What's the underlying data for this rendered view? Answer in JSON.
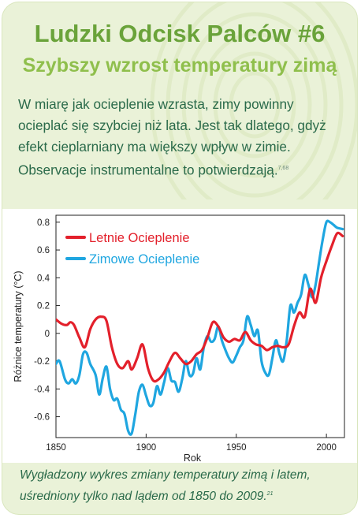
{
  "card": {
    "title": "Ludzki Odcisk Palców #6",
    "subtitle": "Szybszy wzrost temperatury zimą",
    "body": "W miarę jak ocieplenie wzrasta, zimy powinny ocieplać się szybciej niż lata. Jest tak dlatego, gdyż efekt cieplarniany ma większy wpływ w zimie. Observacje instrumentalne to potwierdzają.",
    "body_ref": "7,68",
    "caption": "Wygładzony wykres zmiany temperatury zimą i latem, uśredniony tylko nad lądem od 1850 do 2009.",
    "caption_ref": "21"
  },
  "colors": {
    "accent": "#6aa33a",
    "summer": "#e3202b",
    "winter": "#1fa6e0"
  },
  "chart_data": {
    "type": "line",
    "xlabel": "Rok",
    "ylabel": "Różnice temperatury (°C)",
    "xlim": [
      1850,
      2010
    ],
    "ylim": [
      -0.75,
      0.85
    ],
    "xticks": [
      1850,
      1900,
      1950,
      2000
    ],
    "yticks": [
      0.8,
      0.6,
      0.4,
      0.2,
      0,
      -0.2,
      -0.4,
      -0.6
    ],
    "ytick_labels": [
      "0.8",
      "0.6",
      "0.4",
      "0.2",
      "0",
      "-0.2",
      "-0.4",
      "-0.6"
    ],
    "legend_position": "top-left",
    "grid": false,
    "series": [
      {
        "name": "Letnie Ocieplenie",
        "x": [
          1850,
          1853,
          1856,
          1858,
          1860,
          1863,
          1866,
          1869,
          1872,
          1875,
          1878,
          1881,
          1884,
          1887,
          1890,
          1892,
          1895,
          1898,
          1901,
          1904,
          1907,
          1910,
          1913,
          1916,
          1919,
          1922,
          1925,
          1928,
          1931,
          1934,
          1937,
          1940,
          1943,
          1946,
          1949,
          1952,
          1955,
          1958,
          1961,
          1964,
          1967,
          1970,
          1973,
          1976,
          1979,
          1982,
          1985,
          1988,
          1991,
          1994,
          1997,
          2000,
          2003,
          2006,
          2009
        ],
        "y": [
          0.1,
          0.07,
          0.06,
          0.08,
          0.06,
          -0.03,
          -0.1,
          0.03,
          0.1,
          0.12,
          0.09,
          -0.1,
          -0.22,
          -0.25,
          -0.2,
          -0.26,
          -0.18,
          -0.08,
          -0.25,
          -0.34,
          -0.33,
          -0.28,
          -0.2,
          -0.14,
          -0.18,
          -0.22,
          -0.2,
          -0.15,
          -0.12,
          -0.03,
          0.08,
          0.05,
          -0.03,
          -0.06,
          -0.04,
          -0.05,
          0.01,
          -0.05,
          -0.08,
          -0.09,
          -0.12,
          -0.1,
          -0.09,
          -0.1,
          -0.08,
          0.05,
          0.15,
          0.12,
          0.32,
          0.22,
          0.4,
          0.52,
          0.63,
          0.72,
          0.7
        ]
      },
      {
        "name": "Zimowe Ocieplenie",
        "x": [
          1850,
          1852,
          1855,
          1857,
          1859,
          1861,
          1863,
          1865,
          1867,
          1869,
          1872,
          1874,
          1876,
          1878,
          1880,
          1882,
          1884,
          1886,
          1888,
          1890,
          1892,
          1894,
          1896,
          1898,
          1900,
          1902,
          1904,
          1906,
          1908,
          1910,
          1912,
          1914,
          1916,
          1918,
          1920,
          1922,
          1924,
          1926,
          1928,
          1930,
          1932,
          1934,
          1936,
          1938,
          1940,
          1942,
          1944,
          1946,
          1948,
          1950,
          1952,
          1954,
          1956,
          1958,
          1960,
          1962,
          1964,
          1966,
          1968,
          1970,
          1972,
          1974,
          1976,
          1978,
          1980,
          1982,
          1984,
          1986,
          1988,
          1990,
          1992,
          1994,
          1996,
          1998,
          2000,
          2002,
          2004,
          2006,
          2009
        ],
        "y": [
          -0.22,
          -0.2,
          -0.33,
          -0.36,
          -0.33,
          -0.36,
          -0.3,
          -0.15,
          -0.14,
          -0.22,
          -0.3,
          -0.44,
          -0.32,
          -0.24,
          -0.4,
          -0.48,
          -0.47,
          -0.55,
          -0.58,
          -0.7,
          -0.72,
          -0.58,
          -0.42,
          -0.37,
          -0.45,
          -0.52,
          -0.5,
          -0.38,
          -0.44,
          -0.35,
          -0.25,
          -0.34,
          -0.35,
          -0.42,
          -0.33,
          -0.2,
          -0.3,
          -0.29,
          -0.18,
          -0.26,
          -0.1,
          -0.02,
          -0.06,
          -0.04,
          0.05,
          -0.05,
          -0.12,
          -0.18,
          -0.21,
          -0.16,
          -0.1,
          -0.05,
          0.12,
          0.06,
          -0.02,
          0.02,
          -0.2,
          -0.28,
          -0.3,
          -0.18,
          -0.05,
          -0.15,
          -0.2,
          -0.05,
          0.2,
          0.15,
          0.22,
          0.28,
          0.42,
          0.35,
          0.26,
          0.35,
          0.52,
          0.68,
          0.8,
          0.8,
          0.78,
          0.76,
          0.75
        ]
      }
    ]
  }
}
